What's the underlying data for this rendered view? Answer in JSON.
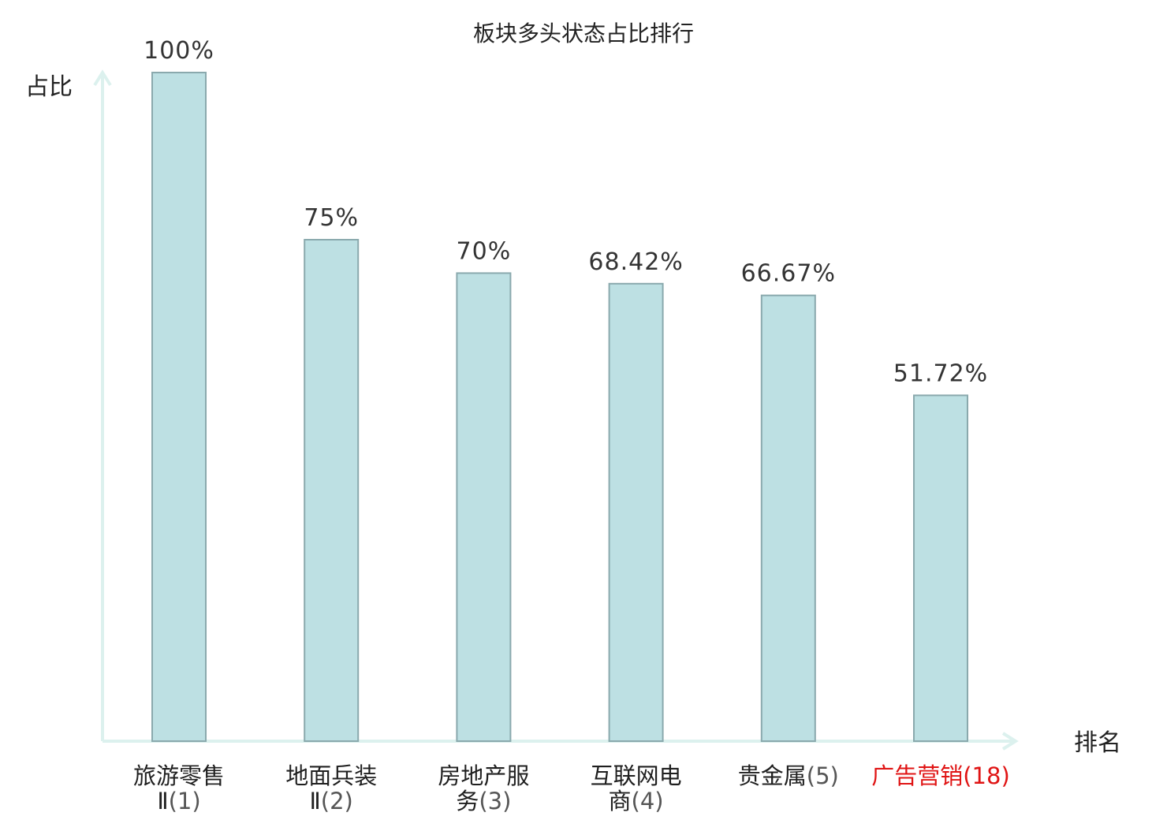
{
  "chart_data": {
    "type": "bar",
    "title": "板块多头状态占比排行",
    "ylabel": "占比",
    "xlabel": "排名",
    "ylim": [
      0,
      100
    ],
    "grid": false,
    "legend": "none",
    "bar_color": "#bde0e3",
    "bar_edge_color": "#8aa9ad",
    "axis_color": "#dcf1ee",
    "highlight_color": "#e01414",
    "categories": [
      {
        "lines": [
          "旅游零售",
          "Ⅱ"
        ],
        "rank": "(1)",
        "highlight": false
      },
      {
        "lines": [
          "地面兵装",
          "Ⅱ"
        ],
        "rank": "(2)",
        "highlight": false
      },
      {
        "lines": [
          "房地产服",
          "务"
        ],
        "rank": "(3)",
        "highlight": false
      },
      {
        "lines": [
          "互联网电",
          "商"
        ],
        "rank": "(4)",
        "highlight": false
      },
      {
        "lines": [
          "贵金属"
        ],
        "rank": "(5)",
        "highlight": false
      },
      {
        "lines": [
          "广告营销"
        ],
        "rank": "(18)",
        "highlight": true
      }
    ],
    "values": [
      100,
      75,
      70,
      68.42,
      66.67,
      51.72
    ],
    "value_labels": [
      "100%",
      "75%",
      "70%",
      "68.42%",
      "66.67%",
      "51.72%"
    ]
  }
}
